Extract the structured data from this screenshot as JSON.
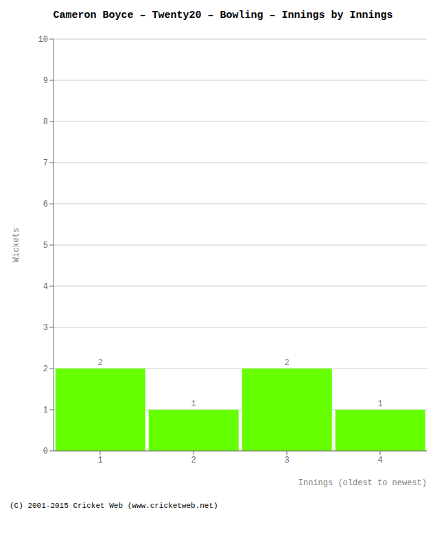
{
  "chart_data": {
    "type": "bar",
    "title": "Cameron Boyce – Twenty20 – Bowling – Innings by Innings",
    "xlabel": "Innings (oldest to newest)",
    "ylabel": "Wickets",
    "categories": [
      "1",
      "2",
      "3",
      "4"
    ],
    "values": [
      2,
      1,
      2,
      1
    ],
    "color": "#66ff00",
    "ylim": [
      0,
      10
    ],
    "yticks": [
      0,
      1,
      2,
      3,
      4,
      5,
      6,
      7,
      8,
      9,
      10
    ],
    "grid": true,
    "data_labels": true,
    "annotations": [
      "(C) 2001-2015 Cricket Web (www.cricketweb.net)"
    ]
  }
}
